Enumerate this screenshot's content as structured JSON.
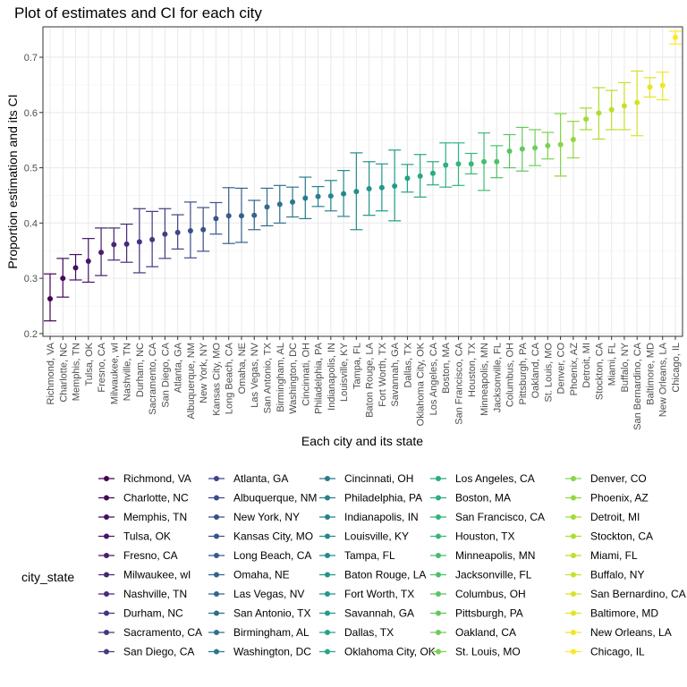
{
  "chart_data": {
    "type": "scatter",
    "title": "Plot of estimates and CI for each city",
    "xlabel": "Each city and its state",
    "ylabel": "Proportion estimation and its CI",
    "ylim": [
      0.195,
      0.755
    ],
    "yticks": [
      0.2,
      0.3,
      0.4,
      0.5,
      0.6,
      0.7
    ],
    "grid": true,
    "legend_title": "city_state",
    "legend_position": "bottom",
    "points": [
      {
        "city": "Richmond, VA",
        "estimate": 0.263,
        "lower": 0.223,
        "upper": 0.308
      },
      {
        "city": "Charlotte, NC",
        "estimate": 0.3,
        "lower": 0.266,
        "upper": 0.336
      },
      {
        "city": "Memphis, TN",
        "estimate": 0.319,
        "lower": 0.297,
        "upper": 0.343
      },
      {
        "city": "Tulsa, OK",
        "estimate": 0.331,
        "lower": 0.293,
        "upper": 0.372
      },
      {
        "city": "Fresno, CA",
        "estimate": 0.347,
        "lower": 0.305,
        "upper": 0.391
      },
      {
        "city": "Milwaukee, wI",
        "estimate": 0.361,
        "lower": 0.333,
        "upper": 0.391
      },
      {
        "city": "Nashville, TN",
        "estimate": 0.362,
        "lower": 0.329,
        "upper": 0.398
      },
      {
        "city": "Durham, NC",
        "estimate": 0.366,
        "lower": 0.31,
        "upper": 0.426
      },
      {
        "city": "Sacramento, CA",
        "estimate": 0.37,
        "lower": 0.321,
        "upper": 0.421
      },
      {
        "city": "San Diego, CA",
        "estimate": 0.38,
        "lower": 0.336,
        "upper": 0.426
      },
      {
        "city": "Atlanta, GA",
        "estimate": 0.383,
        "lower": 0.353,
        "upper": 0.415
      },
      {
        "city": "Albuquerque, NM",
        "estimate": 0.386,
        "lower": 0.337,
        "upper": 0.438
      },
      {
        "city": "New York, NY",
        "estimate": 0.388,
        "lower": 0.349,
        "upper": 0.428
      },
      {
        "city": "Kansas City, MO",
        "estimate": 0.408,
        "lower": 0.38,
        "upper": 0.437
      },
      {
        "city": "Long Beach, CA",
        "estimate": 0.413,
        "lower": 0.363,
        "upper": 0.464
      },
      {
        "city": "Omaha, NE",
        "estimate": 0.413,
        "lower": 0.365,
        "upper": 0.463
      },
      {
        "city": "Las Vegas, NV",
        "estimate": 0.414,
        "lower": 0.388,
        "upper": 0.441
      },
      {
        "city": "San Antonio, TX",
        "estimate": 0.429,
        "lower": 0.395,
        "upper": 0.463
      },
      {
        "city": "Birmingham, AL",
        "estimate": 0.434,
        "lower": 0.4,
        "upper": 0.468
      },
      {
        "city": "Washington, DC",
        "estimate": 0.438,
        "lower": 0.411,
        "upper": 0.465
      },
      {
        "city": "Cincinnati, OH",
        "estimate": 0.445,
        "lower": 0.408,
        "upper": 0.483
      },
      {
        "city": "Philadelphia, PA",
        "estimate": 0.448,
        "lower": 0.43,
        "upper": 0.466
      },
      {
        "city": "Indianapolis, IN",
        "estimate": 0.449,
        "lower": 0.422,
        "upper": 0.477
      },
      {
        "city": "Louisville, KY",
        "estimate": 0.453,
        "lower": 0.412,
        "upper": 0.495
      },
      {
        "city": "Tampa, FL",
        "estimate": 0.457,
        "lower": 0.388,
        "upper": 0.527
      },
      {
        "city": "Baton Rouge, LA",
        "estimate": 0.462,
        "lower": 0.414,
        "upper": 0.511
      },
      {
        "city": "Fort Worth, TX",
        "estimate": 0.464,
        "lower": 0.422,
        "upper": 0.507
      },
      {
        "city": "Savannah, GA",
        "estimate": 0.467,
        "lower": 0.404,
        "upper": 0.532
      },
      {
        "city": "Dallas, TX",
        "estimate": 0.481,
        "lower": 0.456,
        "upper": 0.506
      },
      {
        "city": "Oklahoma City, OK",
        "estimate": 0.485,
        "lower": 0.447,
        "upper": 0.524
      },
      {
        "city": "Los Angeles, CA",
        "estimate": 0.49,
        "lower": 0.469,
        "upper": 0.511
      },
      {
        "city": "Boston, MA",
        "estimate": 0.505,
        "lower": 0.465,
        "upper": 0.545
      },
      {
        "city": "San Francisco, CA",
        "estimate": 0.507,
        "lower": 0.468,
        "upper": 0.545
      },
      {
        "city": "Houston, TX",
        "estimate": 0.507,
        "lower": 0.489,
        "upper": 0.526
      },
      {
        "city": "Minneapolis, MN",
        "estimate": 0.511,
        "lower": 0.459,
        "upper": 0.563
      },
      {
        "city": "Jacksonville, FL",
        "estimate": 0.511,
        "lower": 0.482,
        "upper": 0.54
      },
      {
        "city": "Columbus, OH",
        "estimate": 0.53,
        "lower": 0.5,
        "upper": 0.56
      },
      {
        "city": "Pittsburgh, PA",
        "estimate": 0.534,
        "lower": 0.494,
        "upper": 0.573
      },
      {
        "city": "Oakland, CA",
        "estimate": 0.536,
        "lower": 0.504,
        "upper": 0.569
      },
      {
        "city": "St. Louis, MO",
        "estimate": 0.54,
        "lower": 0.516,
        "upper": 0.564
      },
      {
        "city": "Denver, CO",
        "estimate": 0.542,
        "lower": 0.485,
        "upper": 0.598
      },
      {
        "city": "Phoenix, AZ",
        "estimate": 0.551,
        "lower": 0.518,
        "upper": 0.584
      },
      {
        "city": "Detroit, MI",
        "estimate": 0.588,
        "lower": 0.569,
        "upper": 0.608
      },
      {
        "city": "Stockton, CA",
        "estimate": 0.599,
        "lower": 0.552,
        "upper": 0.645
      },
      {
        "city": "Miami, FL",
        "estimate": 0.605,
        "lower": 0.569,
        "upper": 0.64
      },
      {
        "city": "Buffalo, NY",
        "estimate": 0.612,
        "lower": 0.569,
        "upper": 0.654
      },
      {
        "city": "San Bernardino, CA",
        "estimate": 0.618,
        "lower": 0.558,
        "upper": 0.675
      },
      {
        "city": "Baltimore, MD",
        "estimate": 0.646,
        "lower": 0.628,
        "upper": 0.663
      },
      {
        "city": "New Orleans, LA",
        "estimate": 0.649,
        "lower": 0.623,
        "upper": 0.673
      },
      {
        "city": "Chicago, IL",
        "estimate": 0.736,
        "lower": 0.724,
        "upper": 0.747
      }
    ]
  }
}
